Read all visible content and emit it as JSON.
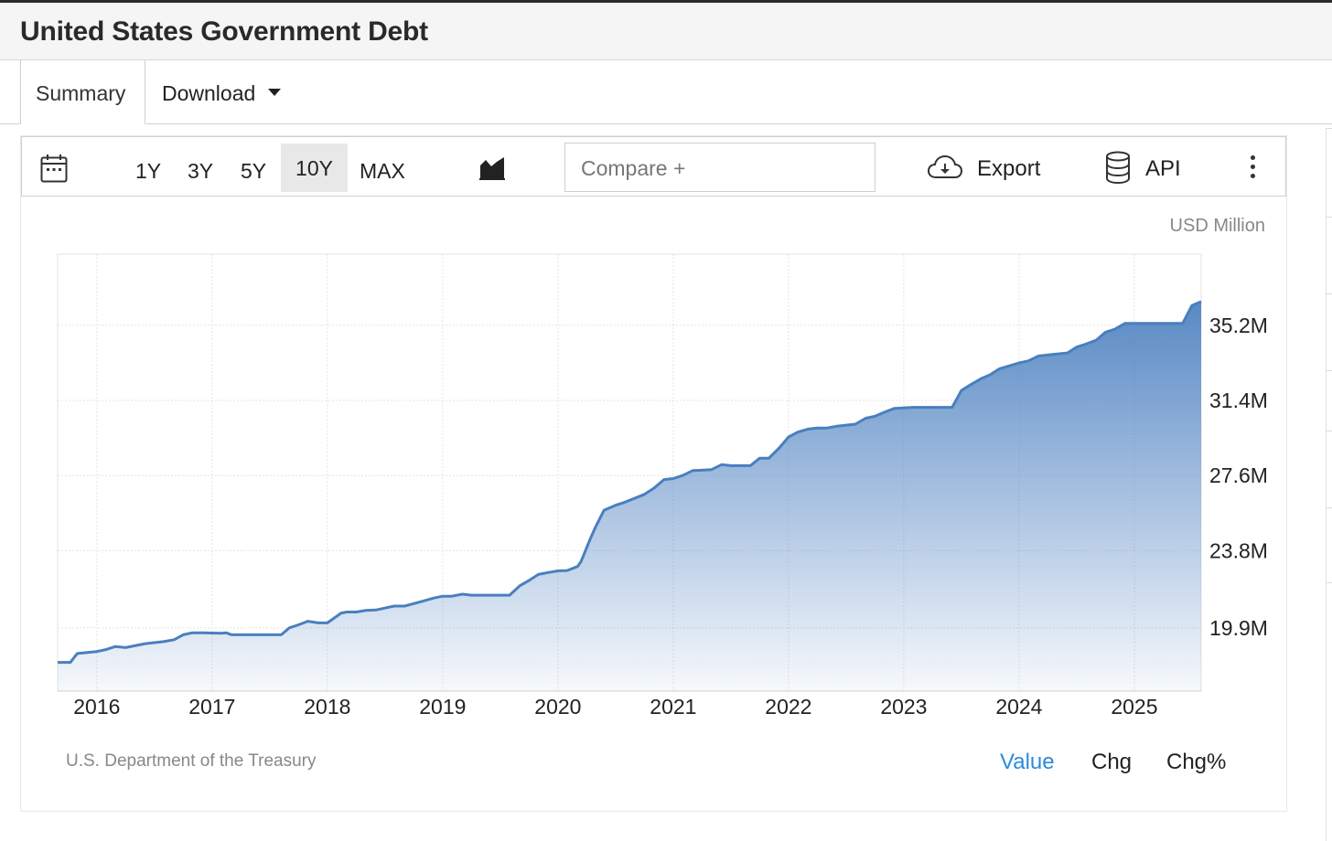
{
  "title": "United States Government Debt",
  "tabs": {
    "summary": "Summary",
    "download": "Download"
  },
  "toolbar": {
    "ranges": [
      "1Y",
      "3Y",
      "5Y",
      "10Y",
      "MAX"
    ],
    "active_range": "10Y",
    "compare_placeholder": "Compare +",
    "export_label": "Export",
    "api_label": "API",
    "icons": [
      "calendar-icon",
      "area-chart-icon",
      "cloud-download-icon",
      "database-icon",
      "more-vertical-icon"
    ]
  },
  "chart_data": {
    "type": "area",
    "unit": "USD Million",
    "x_labels": [
      "2016",
      "2017",
      "2018",
      "2019",
      "2020",
      "2021",
      "2022",
      "2023",
      "2024",
      "2025"
    ],
    "y_ticks": [
      19.9,
      23.8,
      27.6,
      31.4,
      35.2
    ],
    "y_tick_labels": [
      "19.9M",
      "23.8M",
      "27.6M",
      "31.4M",
      "35.2M"
    ],
    "xlim": [
      2015.66,
      2025.58
    ],
    "ylim": [
      16.7,
      38.8
    ],
    "grid": true,
    "color": "#4a7fbf",
    "series": [
      {
        "points": [
          [
            2015.66,
            18.15
          ],
          [
            2015.77,
            18.15
          ],
          [
            2015.83,
            18.6
          ],
          [
            2016.0,
            18.7
          ],
          [
            2016.08,
            18.8
          ],
          [
            2016.16,
            18.95
          ],
          [
            2016.25,
            18.9
          ],
          [
            2016.42,
            19.1
          ],
          [
            2016.58,
            19.2
          ],
          [
            2016.67,
            19.3
          ],
          [
            2016.75,
            19.55
          ],
          [
            2016.83,
            19.65
          ],
          [
            2016.92,
            19.65
          ],
          [
            2017.08,
            19.62
          ],
          [
            2017.12,
            19.65
          ],
          [
            2017.17,
            19.55
          ],
          [
            2017.5,
            19.55
          ],
          [
            2017.6,
            19.55
          ],
          [
            2017.67,
            19.9
          ],
          [
            2017.75,
            20.05
          ],
          [
            2017.83,
            20.23
          ],
          [
            2017.92,
            20.15
          ],
          [
            2018.0,
            20.15
          ],
          [
            2018.12,
            20.65
          ],
          [
            2018.17,
            20.7
          ],
          [
            2018.25,
            20.7
          ],
          [
            2018.33,
            20.78
          ],
          [
            2018.42,
            20.8
          ],
          [
            2018.58,
            21.0
          ],
          [
            2018.67,
            21.0
          ],
          [
            2018.83,
            21.25
          ],
          [
            2018.92,
            21.4
          ],
          [
            2019.0,
            21.5
          ],
          [
            2019.08,
            21.5
          ],
          [
            2019.17,
            21.6
          ],
          [
            2019.25,
            21.55
          ],
          [
            2019.5,
            21.55
          ],
          [
            2019.58,
            21.55
          ],
          [
            2019.67,
            22.03
          ],
          [
            2019.75,
            22.3
          ],
          [
            2019.83,
            22.6
          ],
          [
            2019.92,
            22.7
          ],
          [
            2020.0,
            22.78
          ],
          [
            2020.08,
            22.8
          ],
          [
            2020.17,
            23.0
          ],
          [
            2020.2,
            23.25
          ],
          [
            2020.28,
            24.4
          ],
          [
            2020.33,
            25.05
          ],
          [
            2020.4,
            25.85
          ],
          [
            2020.5,
            26.1
          ],
          [
            2020.58,
            26.25
          ],
          [
            2020.75,
            26.65
          ],
          [
            2020.83,
            26.95
          ],
          [
            2020.92,
            27.4
          ],
          [
            2021.0,
            27.45
          ],
          [
            2021.08,
            27.6
          ],
          [
            2021.17,
            27.85
          ],
          [
            2021.33,
            27.9
          ],
          [
            2021.42,
            28.15
          ],
          [
            2021.5,
            28.1
          ],
          [
            2021.67,
            28.1
          ],
          [
            2021.75,
            28.48
          ],
          [
            2021.83,
            28.48
          ],
          [
            2021.92,
            29.0
          ],
          [
            2022.0,
            29.55
          ],
          [
            2022.08,
            29.8
          ],
          [
            2022.17,
            29.95
          ],
          [
            2022.25,
            30.0
          ],
          [
            2022.33,
            30.0
          ],
          [
            2022.42,
            30.1
          ],
          [
            2022.58,
            30.2
          ],
          [
            2022.67,
            30.5
          ],
          [
            2022.75,
            30.6
          ],
          [
            2022.83,
            30.8
          ],
          [
            2022.92,
            31.0
          ],
          [
            2023.08,
            31.05
          ],
          [
            2023.42,
            31.05
          ],
          [
            2023.5,
            31.9
          ],
          [
            2023.58,
            32.2
          ],
          [
            2023.67,
            32.5
          ],
          [
            2023.75,
            32.7
          ],
          [
            2023.83,
            33.0
          ],
          [
            2024.0,
            33.3
          ],
          [
            2024.08,
            33.4
          ],
          [
            2024.17,
            33.65
          ],
          [
            2024.25,
            33.7
          ],
          [
            2024.42,
            33.8
          ],
          [
            2024.5,
            34.1
          ],
          [
            2024.58,
            34.25
          ],
          [
            2024.67,
            34.45
          ],
          [
            2024.75,
            34.85
          ],
          [
            2024.83,
            35.0
          ],
          [
            2024.92,
            35.3
          ],
          [
            2025.0,
            35.3
          ],
          [
            2025.17,
            35.3
          ],
          [
            2025.42,
            35.3
          ],
          [
            2025.5,
            36.2
          ],
          [
            2025.58,
            36.4
          ]
        ]
      }
    ],
    "source": "U.S. Department of the Treasury"
  },
  "modes": [
    "Value",
    "Chg",
    "Chg%"
  ],
  "active_mode": "Value"
}
